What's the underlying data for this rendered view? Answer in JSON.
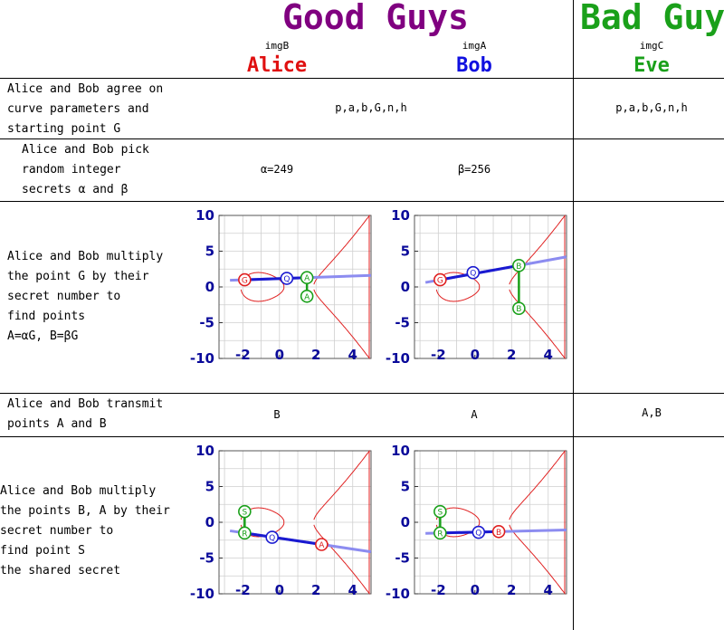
{
  "header": {
    "good_guys": "Good Guys",
    "bad_guy": "Bad Guy",
    "good_color": "#800080",
    "bad_color": "#1aa01a",
    "columns": [
      {
        "img": "imgB",
        "name": "Alice",
        "color": "#e01010"
      },
      {
        "img": "imgA",
        "name": "Bob",
        "color": "#1010e0"
      },
      {
        "img": "imgC",
        "name": "Eve",
        "color": "#1aa01a"
      }
    ]
  },
  "rows": {
    "agree": {
      "label": "Alice and Bob agree on\ncurve parameters and\nstarting point G",
      "shared": "p,a,b,G,n,h",
      "eve": "p,a,b,G,n,h"
    },
    "pick": {
      "label": "Alice and Bob pick\nrandom integer\nsecrets α and β",
      "alice": "α=249",
      "bob": "β=256"
    },
    "multiply": {
      "label": "Alice and Bob multiply\nthe point G by their\nsecret number to\nfind points\nA=αG, B=βG"
    },
    "transmit": {
      "label": "Alice and Bob transmit\npoints A and B",
      "alice": "B",
      "bob": "A",
      "eve": "A,B"
    },
    "shared": {
      "label": "Alice and Bob multiply\nthe points B, A by their\nsecret number to\nfind point S\nthe shared secret"
    }
  },
  "axes": {
    "x_ticks": [
      "-2",
      "0",
      "2",
      "4"
    ],
    "y_ticks": [
      "10",
      "5",
      "0",
      "-5",
      "-10"
    ],
    "xlim": [
      -3.3,
      5
    ],
    "ylim": [
      -10,
      10
    ]
  },
  "plots": [
    {
      "id": "alice_mult",
      "points": [
        {
          "label": "G",
          "x": -1.9,
          "y": 1.0,
          "color": "red"
        },
        {
          "label": "Q",
          "x": 0.4,
          "y": 1.2,
          "color": "blue"
        },
        {
          "label": "A",
          "x": 1.5,
          "y": 1.3,
          "color": "green"
        },
        {
          "label": "A",
          "x": 1.5,
          "y": -1.3,
          "color": "green"
        }
      ]
    },
    {
      "id": "bob_mult",
      "points": [
        {
          "label": "G",
          "x": -1.9,
          "y": 1.0,
          "color": "red"
        },
        {
          "label": "Q",
          "x": -0.1,
          "y": 2.0,
          "color": "blue"
        },
        {
          "label": "B",
          "x": 2.4,
          "y": 3.0,
          "color": "green"
        },
        {
          "label": "B",
          "x": 2.4,
          "y": -3.0,
          "color": "green"
        }
      ]
    },
    {
      "id": "alice_shared",
      "points": [
        {
          "label": "S",
          "x": -1.9,
          "y": 1.5,
          "color": "green"
        },
        {
          "label": "R",
          "x": -1.9,
          "y": -1.5,
          "color": "green"
        },
        {
          "label": "Q",
          "x": -0.4,
          "y": -2.1,
          "color": "blue"
        },
        {
          "label": "A",
          "x": 2.3,
          "y": -3.1,
          "color": "red"
        }
      ]
    },
    {
      "id": "bob_shared",
      "points": [
        {
          "label": "S",
          "x": -1.9,
          "y": 1.5,
          "color": "green"
        },
        {
          "label": "R",
          "x": -1.9,
          "y": -1.5,
          "color": "green"
        },
        {
          "label": "Q",
          "x": 0.2,
          "y": -1.4,
          "color": "blue"
        },
        {
          "label": "B",
          "x": 1.3,
          "y": -1.3,
          "color": "red"
        }
      ]
    }
  ]
}
